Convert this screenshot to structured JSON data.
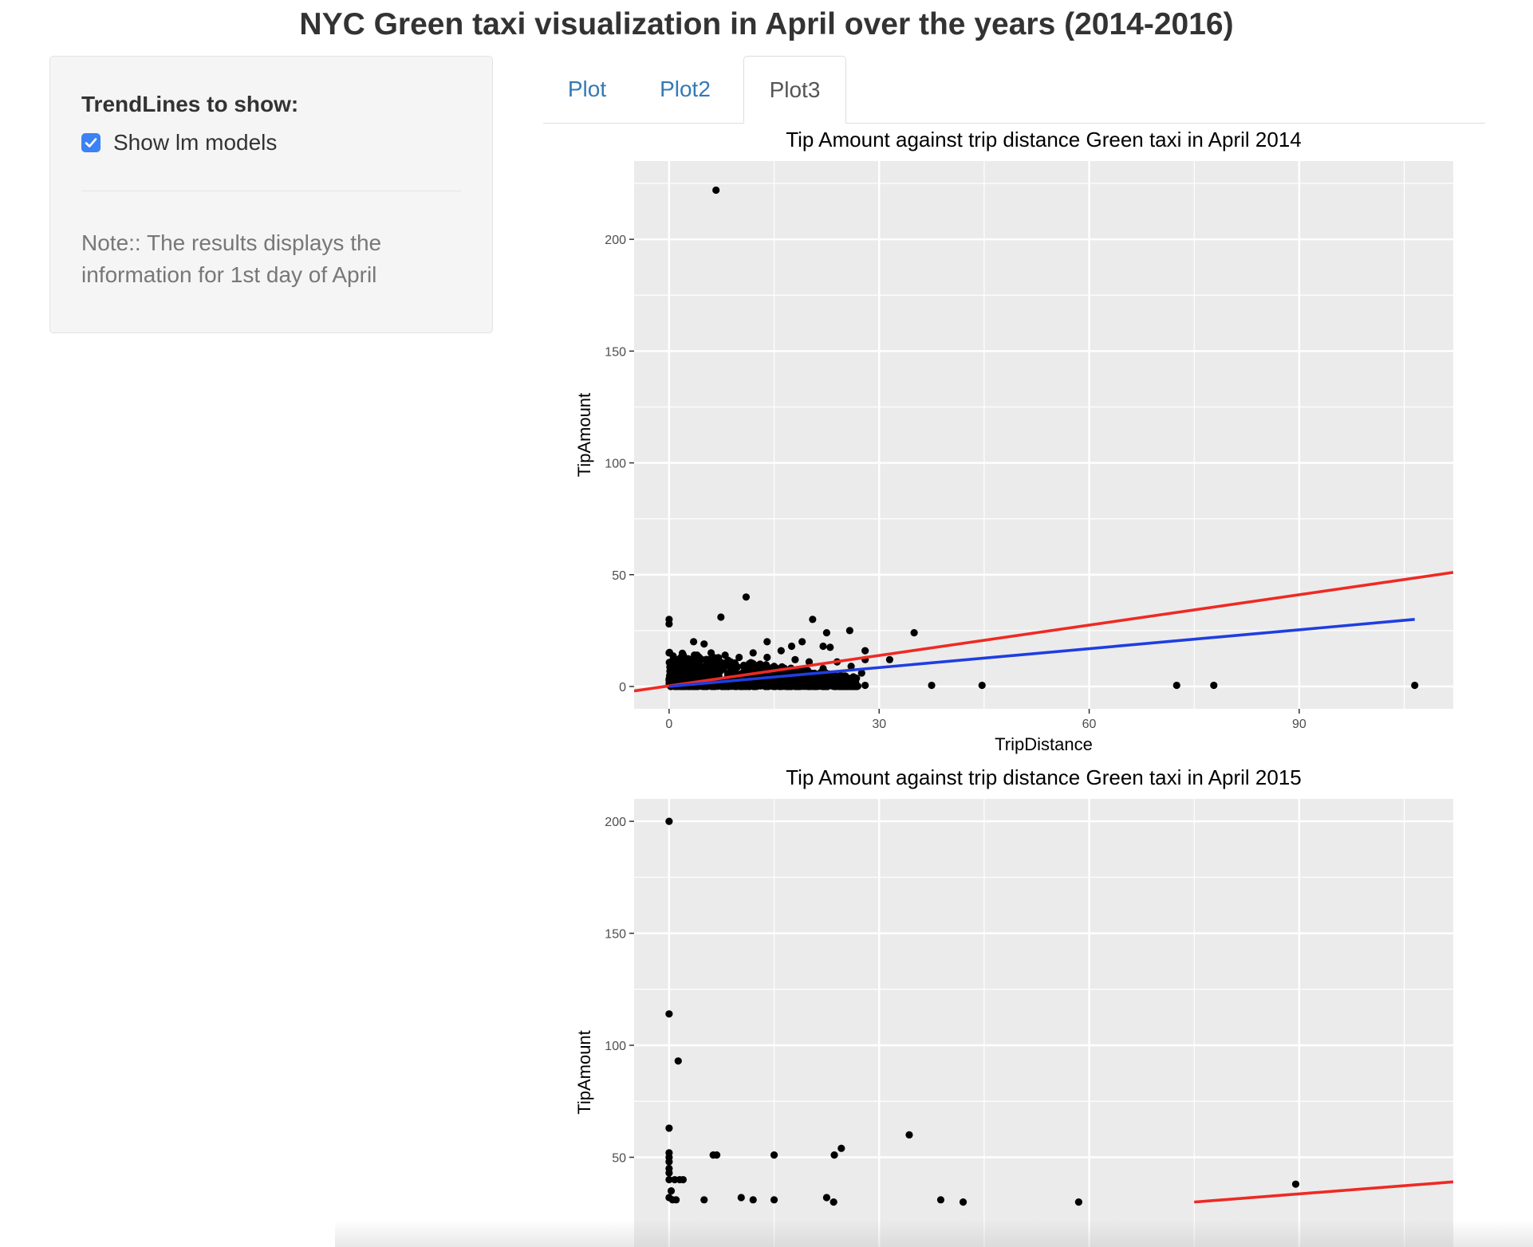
{
  "page": {
    "title": "NYC Green taxi visualization in April over the years (2014-2016)"
  },
  "sidebar": {
    "heading": "TrendLines to show:",
    "checkbox": {
      "label": "Show lm models",
      "checked": true
    },
    "note": "Note:: The results displays the information for 1st day of April"
  },
  "tabs": [
    {
      "label": "Plot",
      "active": false
    },
    {
      "label": "Plot2",
      "active": false
    },
    {
      "label": "Plot3",
      "active": true
    }
  ],
  "colors": {
    "panel_background": "#ebebeb",
    "gridline": "#ffffff",
    "point": "#000000",
    "trend_red": "#ee2a24",
    "trend_blue": "#1f3ee0",
    "link": "#337ab7",
    "checkbox": "#3b82f6"
  },
  "chart_data": [
    {
      "type": "scatter",
      "title": "Tip Amount against trip distance Green taxi in April 2014",
      "xlabel": "TripDistance",
      "ylabel": "TipAmount",
      "xlim": [
        -5,
        112
      ],
      "ylim": [
        -10,
        235
      ],
      "xticks": [
        0,
        30,
        60,
        90
      ],
      "yticks": [
        0,
        50,
        100,
        150,
        200
      ],
      "grid": true,
      "points": [
        [
          6.7,
          222
        ],
        [
          11,
          40
        ],
        [
          7.4,
          31
        ],
        [
          0,
          30
        ],
        [
          0,
          28
        ],
        [
          20.5,
          30
        ],
        [
          25.8,
          25
        ],
        [
          35,
          24
        ],
        [
          22.5,
          24
        ],
        [
          0,
          15
        ],
        [
          3.5,
          20
        ],
        [
          5,
          19
        ],
        [
          14,
          20
        ],
        [
          19,
          20
        ],
        [
          17.5,
          18
        ],
        [
          22,
          18
        ],
        [
          23,
          17.5
        ],
        [
          28,
          16
        ],
        [
          31.5,
          12
        ],
        [
          28,
          12
        ],
        [
          24,
          11
        ],
        [
          26,
          9
        ],
        [
          22,
          8
        ],
        [
          27.5,
          6
        ],
        [
          21,
          5
        ],
        [
          23.5,
          3
        ],
        [
          37.5,
          0.5
        ],
        [
          44.7,
          0.5
        ],
        [
          72.5,
          0.5
        ],
        [
          77.8,
          0.5
        ],
        [
          106.5,
          0.5
        ],
        [
          24,
          0.5
        ],
        [
          26,
          0.5
        ],
        [
          28,
          0.5
        ],
        [
          2,
          12
        ],
        [
          4,
          14
        ],
        [
          6,
          15
        ],
        [
          8,
          14
        ],
        [
          10,
          13
        ],
        [
          12,
          15
        ],
        [
          14,
          13
        ],
        [
          16,
          16
        ],
        [
          18,
          12
        ],
        [
          20,
          11
        ],
        [
          1,
          8
        ],
        [
          3,
          7
        ],
        [
          5,
          9
        ],
        [
          7,
          10
        ],
        [
          9,
          9
        ],
        [
          11,
          8
        ],
        [
          13,
          10
        ],
        [
          15,
          9
        ],
        [
          17,
          7
        ],
        [
          19,
          6
        ]
      ],
      "point_cluster": {
        "x_range": [
          0,
          27
        ],
        "y_range": [
          0,
          16
        ]
      },
      "series": [
        {
          "line": [
            [
              -5,
              -2
            ],
            [
              112,
              51
            ]
          ],
          "color": "#ee2a24"
        },
        {
          "line": [
            [
              0,
              0
            ],
            [
              106.5,
              30
            ]
          ],
          "color": "#1f3ee0"
        }
      ]
    },
    {
      "type": "scatter",
      "title": "Tip Amount against trip distance Green taxi in April 2015",
      "xlabel": "",
      "ylabel": "TipAmount",
      "xlim": [
        -5,
        112
      ],
      "ylim": [
        -10,
        210
      ],
      "yticks": [
        50,
        100,
        150,
        200
      ],
      "grid": true,
      "points": [
        [
          0,
          200
        ],
        [
          0,
          114
        ],
        [
          1.3,
          93
        ],
        [
          0,
          63
        ],
        [
          34.3,
          60
        ],
        [
          24.6,
          54
        ],
        [
          0,
          52
        ],
        [
          0,
          50
        ],
        [
          0,
          48
        ],
        [
          6.3,
          51
        ],
        [
          6.8,
          51
        ],
        [
          15,
          51
        ],
        [
          23.6,
          51
        ],
        [
          0,
          45
        ],
        [
          0,
          43
        ],
        [
          0,
          40
        ],
        [
          0.8,
          40
        ],
        [
          1.5,
          40
        ],
        [
          2,
          40
        ],
        [
          0.3,
          35
        ],
        [
          0,
          32
        ],
        [
          89.5,
          38
        ],
        [
          0.5,
          31
        ],
        [
          1,
          31
        ],
        [
          5,
          31
        ],
        [
          10.3,
          32
        ],
        [
          12,
          31
        ],
        [
          15,
          31
        ],
        [
          22.5,
          32
        ],
        [
          23.5,
          30
        ],
        [
          38.8,
          31
        ],
        [
          42,
          30
        ],
        [
          58.5,
          30
        ]
      ],
      "series": [
        {
          "line": [
            [
              75,
              30
            ],
            [
              112,
              39
            ]
          ],
          "color": "#ee2a24"
        }
      ]
    }
  ]
}
